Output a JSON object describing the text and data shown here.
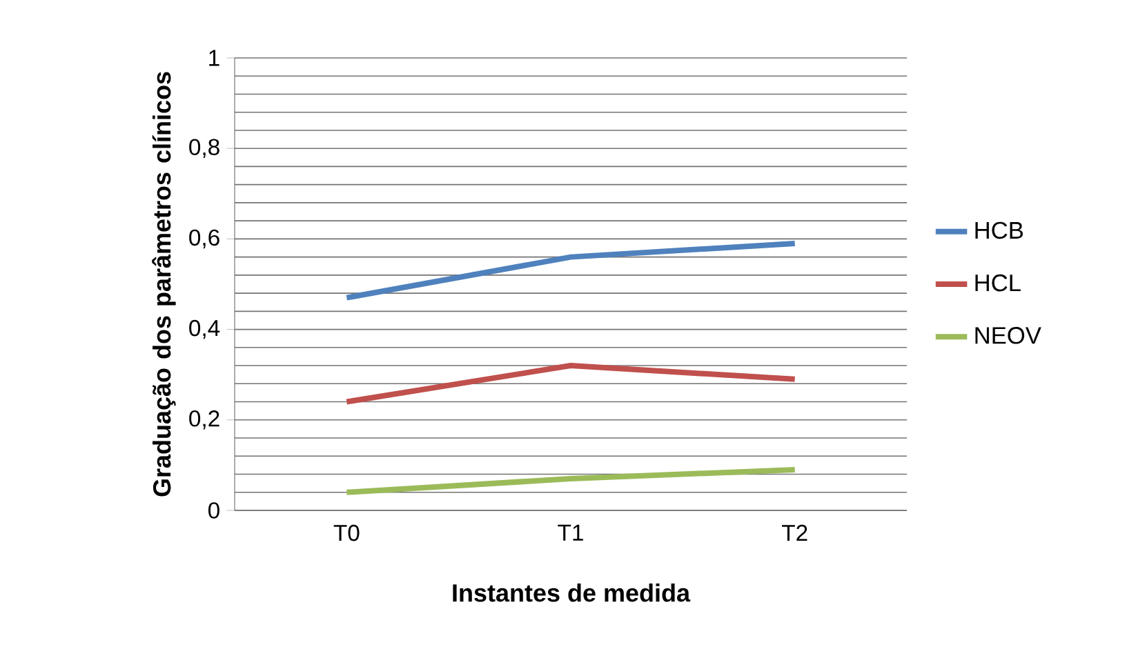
{
  "chart_data": {
    "type": "line",
    "xlabel": "Instantes de medida",
    "ylabel": "Graduação dos parâmetros clínicos",
    "categories": [
      "T0",
      "T1",
      "T2"
    ],
    "series": [
      {
        "name": "HCB",
        "color": "#4f81bd",
        "values": [
          0.47,
          0.56,
          0.59
        ]
      },
      {
        "name": "HCL",
        "color": "#c0504d",
        "values": [
          0.24,
          0.32,
          0.29
        ]
      },
      {
        "name": "NEOV",
        "color": "#9bbb59",
        "values": [
          0.04,
          0.07,
          0.09
        ]
      }
    ],
    "ylim": [
      0,
      1
    ],
    "yticks": [
      0,
      {
        "value": 0.2,
        "label": "0,2"
      },
      {
        "value": 0.4,
        "label": "0,4"
      },
      {
        "value": 0.6,
        "label": "0,6"
      },
      {
        "value": 0.8,
        "label": "0,8"
      },
      1
    ],
    "grid": "y",
    "legend": "right",
    "marker": "none",
    "line_style": "solid"
  }
}
